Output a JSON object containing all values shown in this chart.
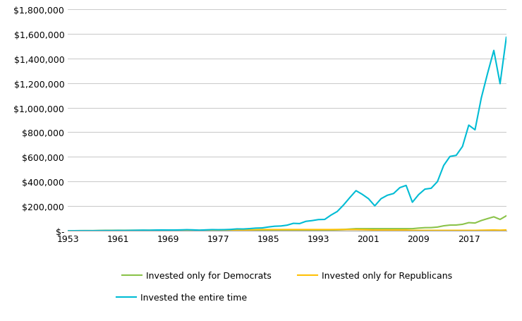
{
  "years": [
    1953,
    1954,
    1955,
    1956,
    1957,
    1958,
    1959,
    1960,
    1961,
    1962,
    1963,
    1964,
    1965,
    1966,
    1967,
    1968,
    1969,
    1970,
    1971,
    1972,
    1973,
    1974,
    1975,
    1976,
    1977,
    1978,
    1979,
    1980,
    1981,
    1982,
    1983,
    1984,
    1985,
    1986,
    1987,
    1988,
    1989,
    1990,
    1991,
    1992,
    1993,
    1994,
    1995,
    1996,
    1997,
    1998,
    1999,
    2000,
    2001,
    2002,
    2003,
    2004,
    2005,
    2006,
    2007,
    2008,
    2009,
    2010,
    2011,
    2012,
    2013,
    2014,
    2015,
    2016,
    2017,
    2018,
    2019,
    2020,
    2021,
    2022,
    2023
  ],
  "total": [
    1000,
    1520,
    2090,
    2210,
    2100,
    3000,
    3540,
    3560,
    4270,
    4020,
    4760,
    5520,
    6340,
    5840,
    7090,
    7760,
    7280,
    7430,
    8320,
    9950,
    8430,
    6180,
    8480,
    10480,
    9720,
    10360,
    12280,
    16330,
    15550,
    18590,
    22770,
    24190,
    31890,
    37910,
    39890,
    46720,
    61510,
    59570,
    77760,
    83760,
    92020,
    93190,
    128130,
    157430,
    209780,
    269660,
    326530,
    296760,
    261140,
    203400,
    261400,
    289100,
    303500,
    351000,
    369200,
    232700,
    294700,
    338900,
    345900,
    400000,
    531000,
    604000,
    613000,
    685000,
    858000,
    820000,
    1078000,
    1277000,
    1464000,
    1194000,
    1570000
  ],
  "democrats": [
    1000,
    1000,
    1000,
    1000,
    1000,
    1000,
    1000,
    1000,
    1390,
    1310,
    1550,
    1800,
    2070,
    1900,
    2310,
    2530,
    2530,
    2530,
    2530,
    2530,
    2530,
    2530,
    2530,
    2530,
    2780,
    2960,
    3510,
    4670,
    4670,
    4670,
    4670,
    4670,
    4670,
    4670,
    4670,
    4670,
    4670,
    4670,
    4670,
    4670,
    5130,
    5200,
    7150,
    8790,
    11710,
    15060,
    18220,
    18220,
    18220,
    18220,
    18220,
    18220,
    18220,
    18220,
    18220,
    18220,
    23040,
    26490,
    26990,
    31270,
    41520,
    47230,
    47940,
    53540,
    67100,
    64100,
    84300,
    99800,
    114400,
    93300,
    122700
  ],
  "republicans": [
    1000,
    1520,
    2090,
    2210,
    2100,
    3000,
    3540,
    3560,
    3560,
    3560,
    3560,
    3560,
    3560,
    3560,
    3560,
    3560,
    3330,
    3400,
    3810,
    4560,
    3860,
    2830,
    3880,
    4800,
    4450,
    4740,
    5620,
    7480,
    7120,
    8510,
    10420,
    11070,
    11070,
    11070,
    11070,
    11070,
    11070,
    11070,
    11070,
    11070,
    11070,
    11070,
    11070,
    11070,
    11070,
    11070,
    11070,
    10070,
    8870,
    6900,
    6900,
    6900,
    6900,
    6900,
    6900,
    4350,
    4350,
    4350,
    4350,
    4350,
    4350,
    4350,
    4350,
    4350,
    4350,
    4150,
    5460,
    6470,
    7420,
    6050,
    7950
  ],
  "total_color": "#00bcd4",
  "democrats_color": "#8bc34a",
  "republicans_color": "#ffc107",
  "background_color": "#ffffff",
  "grid_color": "#cccccc",
  "ylim": [
    0,
    1800000
  ],
  "yticks": [
    0,
    200000,
    400000,
    600000,
    800000,
    1000000,
    1200000,
    1400000,
    1600000,
    1800000
  ],
  "xticks": [
    1953,
    1961,
    1969,
    1977,
    1985,
    1993,
    2001,
    2009,
    2017
  ],
  "legend_democrats": "Invested only for Democrats",
  "legend_republicans": "Invested only for Republicans",
  "legend_total": "Invested the entire time",
  "line_width": 1.5
}
